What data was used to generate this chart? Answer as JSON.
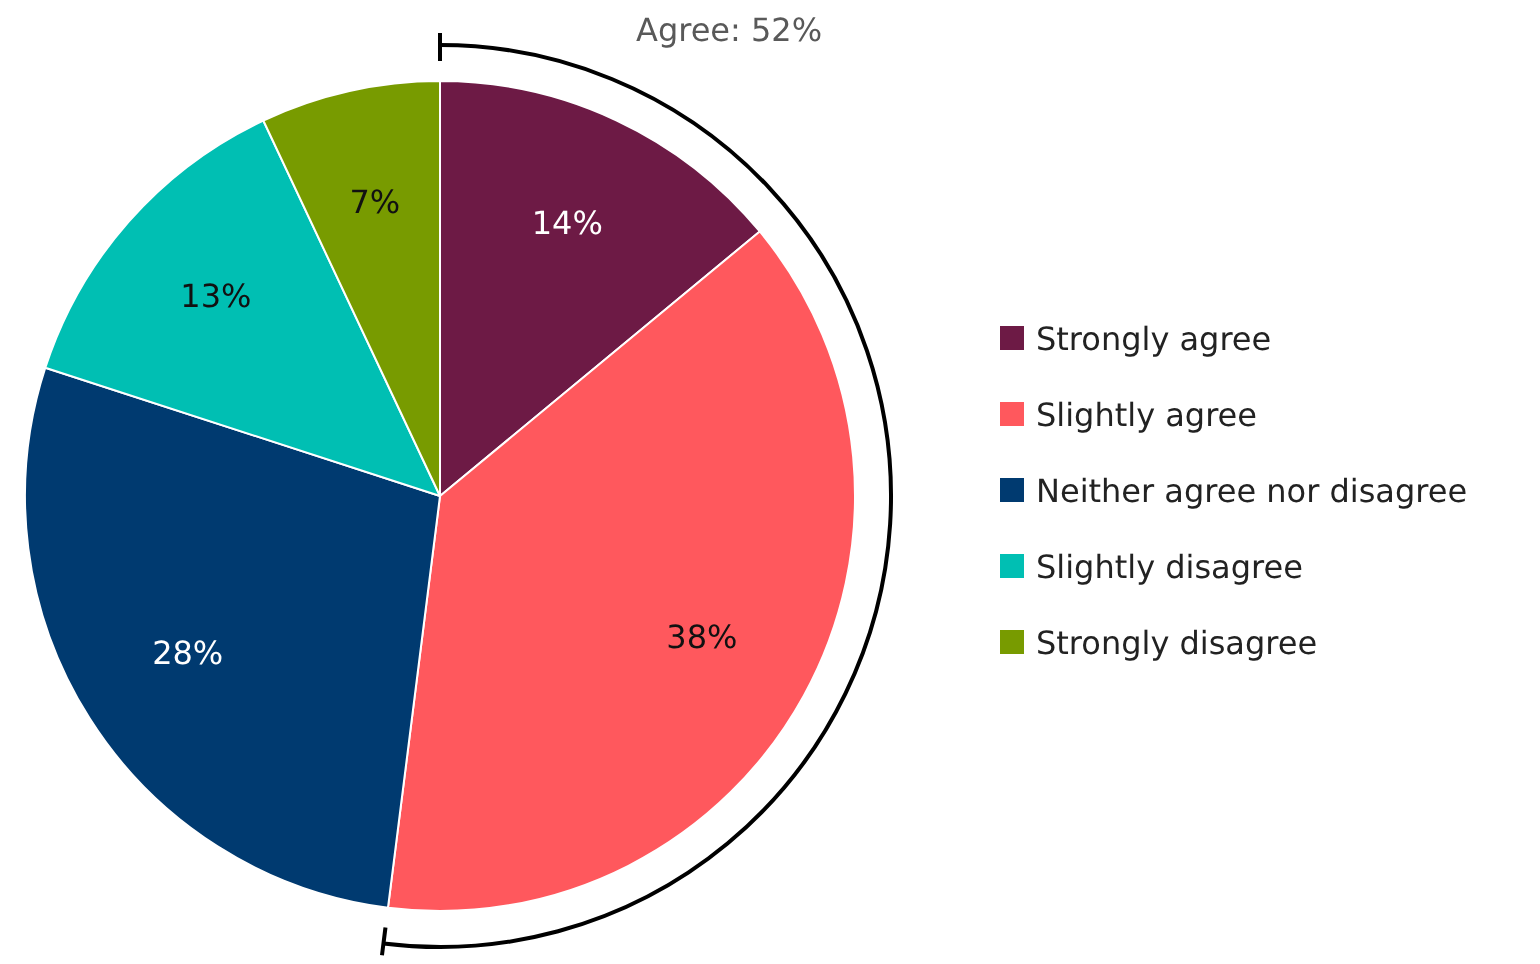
{
  "chart_data": {
    "type": "pie",
    "categories": [
      "Strongly agree",
      "Slightly agree",
      "Neither agree nor disagree",
      "Slightly disagree",
      "Strongly disagree"
    ],
    "values": [
      14,
      38,
      28,
      13,
      7
    ],
    "colors": [
      "#6d1a45",
      "#ff585d",
      "#003a70",
      "#00bfb3",
      "#789b00"
    ],
    "data_labels": true,
    "value_labels": [
      "14%",
      "38%",
      "28%",
      "13%",
      "7%"
    ],
    "legend": "right",
    "annotations": [
      "Agree: 52%"
    ]
  }
}
